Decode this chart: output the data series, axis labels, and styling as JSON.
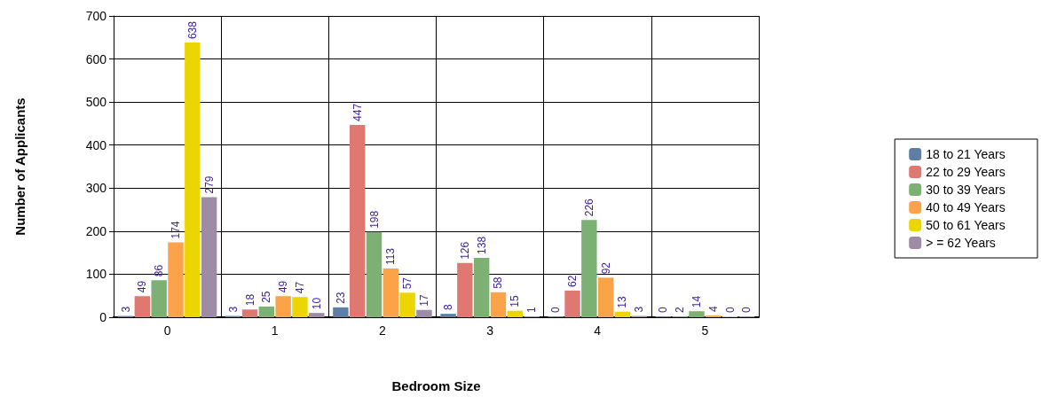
{
  "chart_data": {
    "type": "bar",
    "xlabel": "Bedroom Size",
    "ylabel": "Number of Applicants",
    "categories": [
      "0",
      "1",
      "2",
      "3",
      "4",
      "5"
    ],
    "series": [
      {
        "name": "18 to 21 Years",
        "color": "#5f7ea6",
        "values": [
          3,
          3,
          23,
          8,
          0,
          0
        ]
      },
      {
        "name": "22 to 29 Years",
        "color": "#e07872",
        "values": [
          49,
          18,
          447,
          126,
          62,
          2
        ]
      },
      {
        "name": "30 to 39 Years",
        "color": "#7db174",
        "values": [
          86,
          25,
          198,
          138,
          226,
          14
        ]
      },
      {
        "name": "40 to 49 Years",
        "color": "#fba348",
        "values": [
          174,
          49,
          113,
          58,
          92,
          4
        ]
      },
      {
        "name": "50 to 61 Years",
        "color": "#ecd600",
        "values": [
          638,
          47,
          57,
          15,
          13,
          0
        ]
      },
      {
        "name": "> = 62 Years",
        "color": "#9e8ba6",
        "values": [
          279,
          10,
          17,
          1,
          3,
          0
        ]
      }
    ],
    "ylim": [
      0,
      700
    ],
    "yticks": [
      0,
      100,
      200,
      300,
      400,
      500,
      600,
      700
    ],
    "grid": true,
    "legend": "right",
    "data_labels": true
  }
}
